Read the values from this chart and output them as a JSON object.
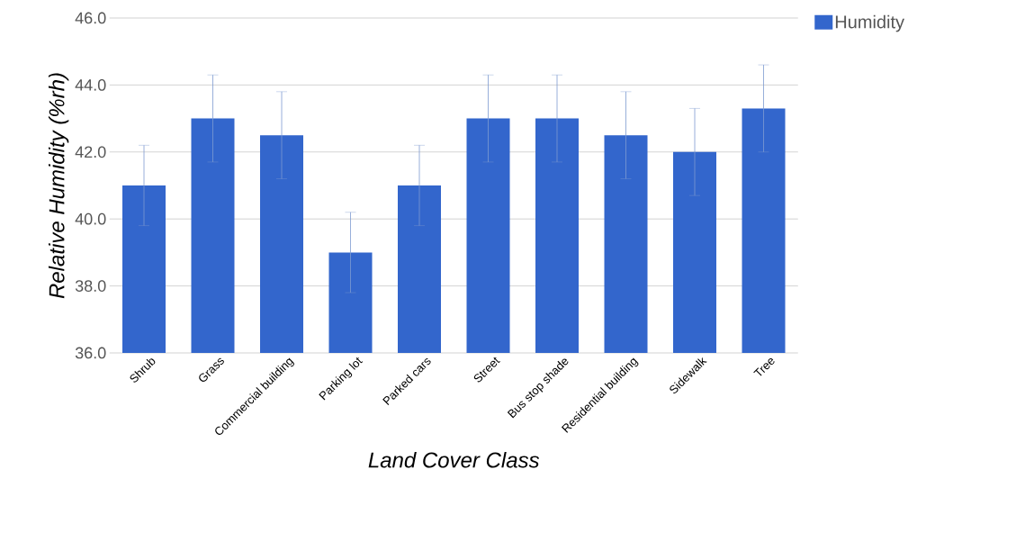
{
  "chart_data": {
    "type": "bar",
    "categories": [
      "Shrub",
      "Grass",
      "Commercial building",
      "Parking lot",
      "Parked cars",
      "Street",
      "Bus stop shade",
      "Residential building",
      "Sidewalk",
      "Tree"
    ],
    "series": [
      {
        "name": "Humidity",
        "color": "#3366cc",
        "values": [
          41.0,
          43.0,
          42.5,
          39.0,
          41.0,
          43.0,
          43.0,
          42.5,
          42.0,
          43.3
        ],
        "errors": [
          1.2,
          1.3,
          1.3,
          1.2,
          1.2,
          1.3,
          1.3,
          1.3,
          1.3,
          1.3
        ]
      }
    ],
    "xlabel": "Land Cover Class",
    "ylabel": "Relative Humidity (%rh)",
    "ylim": [
      36,
      46
    ],
    "yticks": [
      {
        "value": 36,
        "label": "36.0"
      },
      {
        "value": 38,
        "label": "38.0"
      },
      {
        "value": 40,
        "label": "40.0"
      },
      {
        "value": 42,
        "label": "42.0"
      },
      {
        "value": 44,
        "label": "44.0"
      },
      {
        "value": 46,
        "label": "46.0"
      }
    ],
    "grid": "y",
    "legend": "top right"
  }
}
